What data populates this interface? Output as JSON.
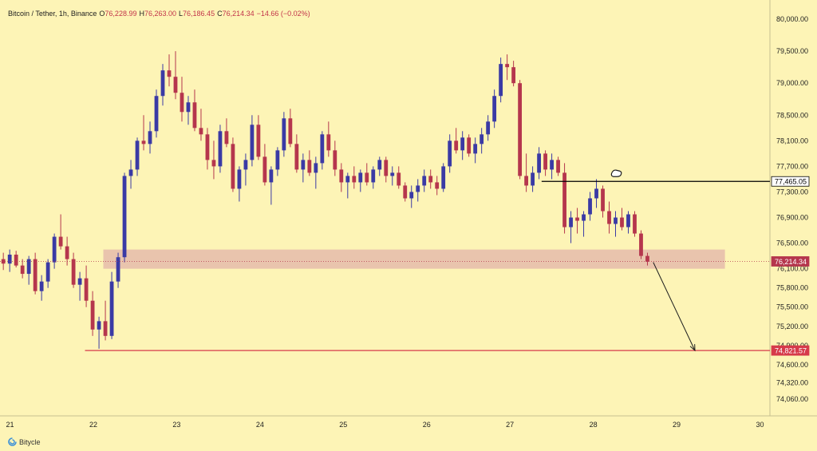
{
  "header": {
    "symbol": "Bitcoin / Tether, 1h, Binance",
    "open_label": "O",
    "open": "76,228.99",
    "high_label": "H",
    "high": "76,263.00",
    "low_label": "L",
    "low": "76,186.45",
    "close_label": "C",
    "close": "76,214.34",
    "change": "−14.66 (−0.02%)"
  },
  "brand": {
    "name": "Bitycle",
    "icon": "bitycle-logo-icon"
  },
  "colors": {
    "background": "#fdf4b6",
    "bull": "#3a3aa5",
    "bear": "#b5364d",
    "zone": "#d99ca5",
    "target_line": "#d63a4a",
    "resistance_line": "#000000"
  },
  "chart_data": {
    "type": "candlestick",
    "ylim": [
      73800,
      80300
    ],
    "y_ticks": [
      {
        "v": 80000,
        "label": "80,000.00"
      },
      {
        "v": 79500,
        "label": "79,500.00"
      },
      {
        "v": 79000,
        "label": "79,000.00"
      },
      {
        "v": 78500,
        "label": "78,500.00"
      },
      {
        "v": 78100,
        "label": "78,100.00"
      },
      {
        "v": 77700,
        "label": "77,700.00"
      },
      {
        "v": 77300,
        "label": "77,300.00"
      },
      {
        "v": 76900,
        "label": "76,900.00"
      },
      {
        "v": 76500,
        "label": "76,500.00"
      },
      {
        "v": 76100,
        "label": "76,100.00"
      },
      {
        "v": 75800,
        "label": "75,800.00"
      },
      {
        "v": 75500,
        "label": "75,500.00"
      },
      {
        "v": 75200,
        "label": "75,200.00"
      },
      {
        "v": 74900,
        "label": "74,900.00"
      },
      {
        "v": 74600,
        "label": "74,600.00"
      },
      {
        "v": 74320,
        "label": "74,320.00"
      },
      {
        "v": 74060,
        "label": "74,060.00"
      }
    ],
    "x_ticks": [
      {
        "day": 21,
        "label": "21"
      },
      {
        "day": 22,
        "label": "22"
      },
      {
        "day": 23,
        "label": "23"
      },
      {
        "day": 24,
        "label": "24"
      },
      {
        "day": 25,
        "label": "25"
      },
      {
        "day": 26,
        "label": "26"
      },
      {
        "day": 27,
        "label": "27"
      },
      {
        "day": 28,
        "label": "28"
      },
      {
        "day": 29,
        "label": "29"
      },
      {
        "day": 30,
        "label": "30"
      }
    ],
    "xlim_days": [
      20.88,
      30.12
    ],
    "ohlc": [
      [
        76250,
        76350,
        76080,
        76180
      ],
      [
        76180,
        76400,
        76050,
        76320
      ],
      [
        76320,
        76380,
        76120,
        76150
      ],
      [
        76150,
        76250,
        75950,
        76020
      ],
      [
        76020,
        76300,
        75850,
        76250
      ],
      [
        76250,
        76350,
        75700,
        75750
      ],
      [
        75750,
        76000,
        75600,
        75900
      ],
      [
        75900,
        76250,
        75800,
        76200
      ],
      [
        76200,
        76650,
        76100,
        76600
      ],
      [
        76600,
        76950,
        76400,
        76450
      ],
      [
        76450,
        76600,
        76150,
        76250
      ],
      [
        76250,
        76350,
        75800,
        75850
      ],
      [
        75850,
        76050,
        75600,
        75950
      ],
      [
        75950,
        76150,
        75500,
        75600
      ],
      [
        75600,
        75750,
        75050,
        75150
      ],
      [
        75150,
        75350,
        74850,
        75280
      ],
      [
        75280,
        75600,
        74980,
        75050
      ],
      [
        75050,
        76050,
        75000,
        75900
      ],
      [
        75900,
        76350,
        75800,
        76280
      ],
      [
        76280,
        77600,
        76200,
        77550
      ],
      [
        77550,
        77800,
        77350,
        77650
      ],
      [
        77650,
        78150,
        77550,
        78100
      ],
      [
        78100,
        78500,
        77950,
        78050
      ],
      [
        78050,
        78400,
        77900,
        78250
      ],
      [
        78250,
        78900,
        78150,
        78800
      ],
      [
        78800,
        79300,
        78650,
        79200
      ],
      [
        79200,
        79450,
        78950,
        79100
      ],
      [
        79100,
        79500,
        78750,
        78850
      ],
      [
        78850,
        79100,
        78400,
        78550
      ],
      [
        78550,
        78800,
        78350,
        78700
      ],
      [
        78700,
        78900,
        78250,
        78300
      ],
      [
        78300,
        78600,
        78100,
        78200
      ],
      [
        78200,
        78300,
        77650,
        77800
      ],
      [
        77800,
        78100,
        77500,
        77700
      ],
      [
        77700,
        78350,
        77600,
        78250
      ],
      [
        78250,
        78450,
        78000,
        78050
      ],
      [
        78050,
        78150,
        77300,
        77350
      ],
      [
        77350,
        77700,
        77150,
        77650
      ],
      [
        77650,
        77900,
        77400,
        77800
      ],
      [
        77800,
        78500,
        77700,
        78350
      ],
      [
        78350,
        78500,
        77800,
        77850
      ],
      [
        77850,
        78050,
        77400,
        77450
      ],
      [
        77450,
        77700,
        77100,
        77650
      ],
      [
        77650,
        78000,
        77550,
        77950
      ],
      [
        77950,
        78550,
        77850,
        78450
      ],
      [
        78450,
        78600,
        78000,
        78050
      ],
      [
        78050,
        78200,
        77600,
        77650
      ],
      [
        77650,
        77900,
        77450,
        77800
      ],
      [
        77800,
        77950,
        77550,
        77600
      ],
      [
        77600,
        77850,
        77350,
        77750
      ],
      [
        77750,
        78250,
        77650,
        78200
      ],
      [
        78200,
        78400,
        77850,
        77950
      ],
      [
        77950,
        78100,
        77550,
        77650
      ],
      [
        77650,
        77750,
        77300,
        77450
      ],
      [
        77450,
        77600,
        77200,
        77550
      ],
      [
        77550,
        77700,
        77350,
        77450
      ],
      [
        77450,
        77650,
        77300,
        77600
      ],
      [
        77600,
        77750,
        77400,
        77450
      ],
      [
        77450,
        77700,
        77350,
        77650
      ],
      [
        77650,
        77850,
        77550,
        77800
      ],
      [
        77800,
        77850,
        77450,
        77550
      ],
      [
        77550,
        77700,
        77400,
        77600
      ],
      [
        77600,
        77700,
        77350,
        77400
      ],
      [
        77400,
        77450,
        77150,
        77200
      ],
      [
        77200,
        77400,
        77050,
        77300
      ],
      [
        77300,
        77500,
        77150,
        77400
      ],
      [
        77400,
        77650,
        77300,
        77550
      ],
      [
        77550,
        77650,
        77350,
        77450
      ],
      [
        77450,
        77550,
        77250,
        77350
      ],
      [
        77350,
        77750,
        77300,
        77700
      ],
      [
        77700,
        78200,
        77600,
        78100
      ],
      [
        78100,
        78300,
        77900,
        77950
      ],
      [
        77950,
        78250,
        77800,
        78150
      ],
      [
        78150,
        78200,
        77850,
        77900
      ],
      [
        77900,
        78150,
        77750,
        78050
      ],
      [
        78050,
        78300,
        77900,
        78200
      ],
      [
        78200,
        78500,
        78100,
        78400
      ],
      [
        78400,
        78900,
        78300,
        78800
      ],
      [
        78800,
        79400,
        78700,
        79300
      ],
      [
        79300,
        79450,
        79050,
        79250
      ],
      [
        79250,
        79350,
        78950,
        79000
      ],
      [
        79000,
        79050,
        77500,
        77550
      ],
      [
        77550,
        77900,
        77300,
        77400
      ],
      [
        77400,
        77700,
        77300,
        77600
      ],
      [
        77600,
        78000,
        77500,
        77900
      ],
      [
        77900,
        77950,
        77550,
        77650
      ],
      [
        77650,
        77900,
        77500,
        77800
      ],
      [
        77800,
        77850,
        77550,
        77600
      ],
      [
        77600,
        77750,
        76650,
        76750
      ],
      [
        76750,
        77000,
        76500,
        76900
      ],
      [
        76900,
        77050,
        76650,
        76850
      ],
      [
        76850,
        77000,
        76600,
        76950
      ],
      [
        76950,
        77300,
        76850,
        77200
      ],
      [
        77200,
        77500,
        77050,
        77350
      ],
      [
        77350,
        77400,
        76900,
        77000
      ],
      [
        77000,
        77150,
        76650,
        76800
      ],
      [
        76800,
        77000,
        76600,
        76900
      ],
      [
        76900,
        77050,
        76700,
        76750
      ],
      [
        76750,
        77000,
        76650,
        76950
      ],
      [
        76950,
        77000,
        76600,
        76650
      ],
      [
        76650,
        76700,
        76250,
        76300
      ],
      [
        76300,
        76350,
        76150,
        76210
      ]
    ],
    "last_price": {
      "value": 76214.34,
      "label": "76,214.34"
    },
    "support_zone": {
      "low": 76100,
      "high": 76400
    },
    "resistance_line": {
      "value": 77465.05,
      "label": "77,465.05"
    },
    "target_line": {
      "value": 74821.57,
      "label": "74,821.57"
    },
    "projection_arrow": {
      "from": {
        "day": 28.72,
        "price": 76200
      },
      "to": {
        "day": 29.22,
        "price": 74821.57
      }
    }
  }
}
